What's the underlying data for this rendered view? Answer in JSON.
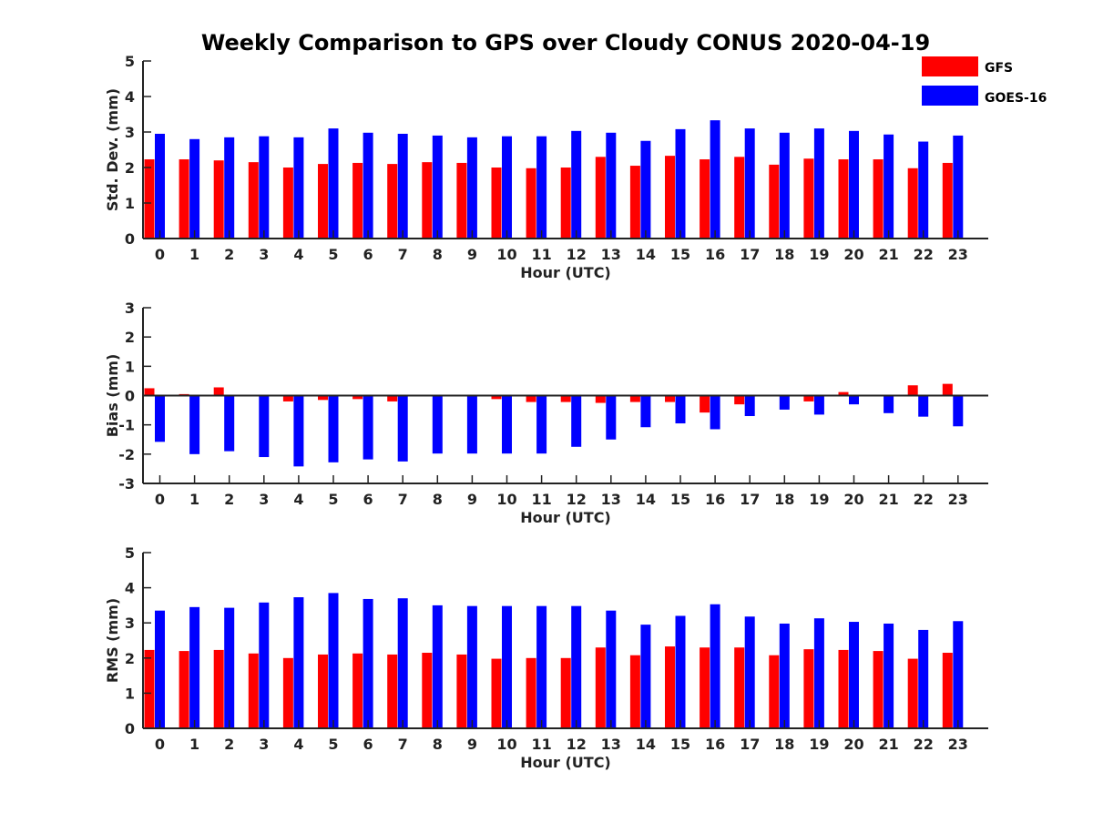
{
  "title": "Weekly Comparison to GPS over Cloudy CONUS 2020-04-19",
  "legend": [
    {
      "label": "GFS",
      "color": "#ff0000"
    },
    {
      "label": "GOES-16",
      "color": "#0000ff"
    }
  ],
  "colors": {
    "gfs": "#ff0000",
    "goes": "#0000ff",
    "axis": "#222222"
  },
  "chart_data": [
    {
      "type": "bar",
      "xlabel": "Hour (UTC)",
      "ylabel": "Std. Dev. (mm)",
      "ylim": [
        0,
        5
      ],
      "yticks": [
        0,
        1,
        2,
        3,
        4,
        5
      ],
      "categories": [
        "0",
        "1",
        "2",
        "3",
        "4",
        "5",
        "6",
        "7",
        "8",
        "9",
        "10",
        "11",
        "12",
        "13",
        "14",
        "15",
        "16",
        "17",
        "18",
        "19",
        "20",
        "21",
        "22",
        "23"
      ],
      "series": [
        {
          "name": "GFS",
          "values": [
            2.23,
            2.23,
            2.2,
            2.15,
            2.0,
            2.1,
            2.13,
            2.1,
            2.15,
            2.13,
            2.0,
            1.98,
            2.0,
            2.3,
            2.05,
            2.33,
            2.23,
            2.3,
            2.08,
            2.25,
            2.23,
            2.23,
            1.98,
            2.13
          ]
        },
        {
          "name": "GOES-16",
          "values": [
            2.95,
            2.8,
            2.85,
            2.88,
            2.85,
            3.1,
            2.98,
            2.95,
            2.9,
            2.85,
            2.88,
            2.88,
            3.03,
            2.98,
            2.75,
            3.08,
            3.33,
            3.1,
            2.98,
            3.1,
            3.03,
            2.93,
            2.73,
            2.9
          ]
        }
      ]
    },
    {
      "type": "bar",
      "xlabel": "Hour (UTC)",
      "ylabel": "Bias (mm)",
      "ylim": [
        -3,
        3
      ],
      "yticks": [
        -3,
        -2,
        -1,
        0,
        1,
        2,
        3
      ],
      "categories": [
        "0",
        "1",
        "2",
        "3",
        "4",
        "5",
        "6",
        "7",
        "8",
        "9",
        "10",
        "11",
        "12",
        "13",
        "14",
        "15",
        "16",
        "17",
        "18",
        "19",
        "20",
        "21",
        "22",
        "23"
      ],
      "series": [
        {
          "name": "GFS",
          "values": [
            0.25,
            0.05,
            0.28,
            0.0,
            -0.2,
            -0.15,
            -0.12,
            -0.2,
            0.03,
            -0.03,
            -0.12,
            -0.22,
            -0.22,
            -0.25,
            -0.22,
            -0.22,
            -0.58,
            -0.3,
            -0.03,
            -0.2,
            0.12,
            0.0,
            0.35,
            0.4
          ]
        },
        {
          "name": "GOES-16",
          "values": [
            -1.58,
            -2.0,
            -1.9,
            -2.1,
            -2.42,
            -2.28,
            -2.18,
            -2.25,
            -1.98,
            -1.98,
            -1.98,
            -1.98,
            -1.75,
            -1.5,
            -1.08,
            -0.95,
            -1.15,
            -0.7,
            -0.48,
            -0.65,
            -0.3,
            -0.6,
            -0.72,
            -1.05
          ]
        }
      ]
    },
    {
      "type": "bar",
      "xlabel": "Hour (UTC)",
      "ylabel": "RMS (mm)",
      "ylim": [
        0,
        5
      ],
      "yticks": [
        0,
        1,
        2,
        3,
        4,
        5
      ],
      "categories": [
        "0",
        "1",
        "2",
        "3",
        "4",
        "5",
        "6",
        "7",
        "8",
        "9",
        "10",
        "11",
        "12",
        "13",
        "14",
        "15",
        "16",
        "17",
        "18",
        "19",
        "20",
        "21",
        "22",
        "23"
      ],
      "series": [
        {
          "name": "GFS",
          "values": [
            2.23,
            2.2,
            2.23,
            2.13,
            2.0,
            2.1,
            2.13,
            2.1,
            2.15,
            2.1,
            1.98,
            2.0,
            2.0,
            2.3,
            2.08,
            2.33,
            2.3,
            2.3,
            2.08,
            2.25,
            2.23,
            2.2,
            1.98,
            2.15
          ]
        },
        {
          "name": "GOES-16",
          "values": [
            3.35,
            3.45,
            3.43,
            3.58,
            3.73,
            3.85,
            3.68,
            3.7,
            3.5,
            3.48,
            3.48,
            3.48,
            3.48,
            3.35,
            2.95,
            3.2,
            3.53,
            3.18,
            2.98,
            3.13,
            3.03,
            2.98,
            2.8,
            3.05
          ]
        }
      ]
    }
  ]
}
